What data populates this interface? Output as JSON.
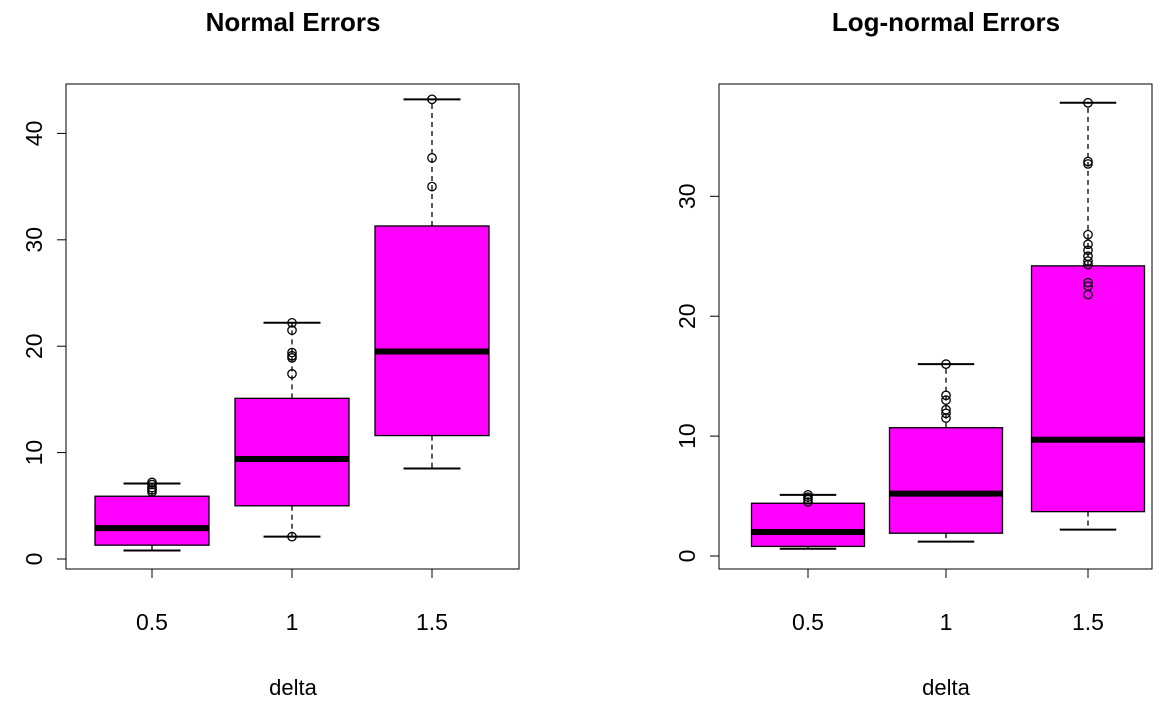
{
  "chart_data": [
    {
      "type": "box",
      "title": "Normal Errors",
      "xlabel": "delta",
      "ylabel": "",
      "categories": [
        "0.5",
        "1",
        "1.5"
      ],
      "yticks": [
        "0",
        "10",
        "20",
        "30",
        "40"
      ],
      "ylim": [
        0,
        44
      ],
      "fill": "#ff00ff",
      "boxes": [
        {
          "category": "0.5",
          "lower_whisker": 0.8,
          "q1": 1.3,
          "median": 2.9,
          "q3": 5.9,
          "upper_whisker": 7.1,
          "outliers": [
            6.3,
            6.5,
            6.7,
            7.0,
            7.2
          ]
        },
        {
          "category": "1",
          "lower_whisker": 2.1,
          "q1": 5.0,
          "median": 9.4,
          "q3": 15.1,
          "upper_whisker": 22.2,
          "outliers": [
            2.1,
            17.4,
            18.9,
            19.1,
            19.4,
            21.5,
            22.2
          ]
        },
        {
          "category": "1.5",
          "lower_whisker": 8.5,
          "q1": 11.6,
          "median": 19.5,
          "q3": 31.3,
          "upper_whisker": 43.2,
          "outliers": [
            35.0,
            37.7,
            43.2
          ]
        }
      ]
    },
    {
      "type": "box",
      "title": "Log-normal Errors",
      "xlabel": "delta",
      "ylabel": "",
      "categories": [
        "0.5",
        "1",
        "1.5"
      ],
      "yticks": [
        "0",
        "10",
        "20",
        "30"
      ],
      "ylim": [
        0,
        38
      ],
      "fill": "#ff00ff",
      "boxes": [
        {
          "category": "0.5",
          "lower_whisker": 0.6,
          "q1": 0.8,
          "median": 2.0,
          "q3": 4.4,
          "upper_whisker": 5.1,
          "outliers": [
            4.5,
            4.7,
            4.9,
            5.1
          ]
        },
        {
          "category": "1",
          "lower_whisker": 1.2,
          "q1": 1.9,
          "median": 5.2,
          "q3": 10.7,
          "upper_whisker": 16.0,
          "outliers": [
            11.5,
            11.9,
            12.2,
            13.0,
            13.4,
            16.0
          ]
        },
        {
          "category": "1.5",
          "lower_whisker": 2.2,
          "q1": 3.7,
          "median": 9.7,
          "q3": 24.2,
          "upper_whisker": 37.8,
          "outliers": [
            21.8,
            22.5,
            22.8,
            24.3,
            24.6,
            25.0,
            25.5,
            26.0,
            26.8,
            32.7,
            32.9,
            37.8
          ]
        }
      ]
    }
  ]
}
